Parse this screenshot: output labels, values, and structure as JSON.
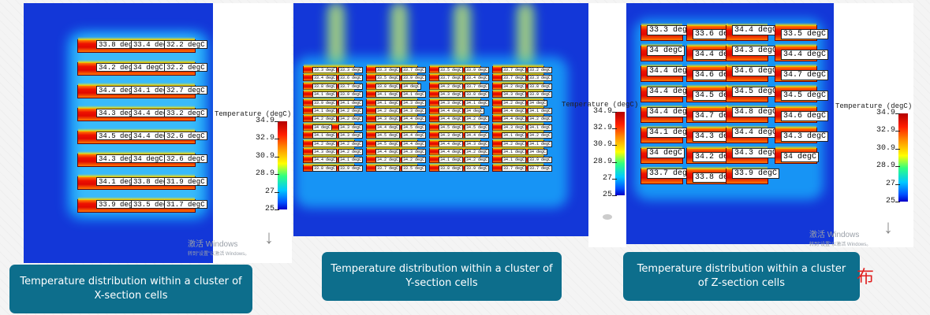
{
  "colorbar": {
    "title": "Temperature (degC)",
    "ticks": [
      "34.9",
      "32.9",
      "30.9",
      "28.9",
      "27",
      "25"
    ]
  },
  "watermark": {
    "main": "激活 Windows",
    "sub": "转到\"设置\"以激活 Windows。"
  },
  "captions": {
    "x": "Temperature distribution within a cluster of X-section cells",
    "y": "Temperature distribution within a cluster of Y-section cells",
    "z": "Temperature distribution within a cluster of Z-section cells"
  },
  "cn_char": "布",
  "x_section": {
    "rows": [
      [
        "33.8 degC",
        "33.4 degC",
        "32.2 degC"
      ],
      [
        "34.2 degC",
        "34 degC",
        "32.2 degC"
      ],
      [
        "34.4 degC",
        "34.1 degC",
        "32.7 degC"
      ],
      [
        "34.3 degC",
        "34.4 degC",
        "33.2 degC"
      ],
      [
        "34.5 degC",
        "34.4 degC",
        "32.6 degC"
      ],
      [
        "34.3 degC",
        "34 degC",
        "32.6 degC"
      ],
      [
        "34.1 degC",
        "33.8 degC",
        "31.9 degC"
      ],
      [
        "33.9 degC",
        "33.5 degC",
        "31.7 degC"
      ]
    ]
  },
  "y_section": {
    "columns": [
      [
        "33.3 degC",
        "33.4 degC",
        "33.8 degC",
        "34.1 degC",
        "33.9 degC",
        "34.1 degC",
        "34.2 degC",
        "34 degC",
        "34.1 degC",
        "34.2 degC",
        "34.3 degC",
        "34.4 degC",
        "33.8 degC"
      ],
      [
        "33.3 degC",
        "33.5 degC",
        "33.8 degC",
        "34.1 degC",
        "34.1 degC",
        "34.2 degC",
        "34.3 degC",
        "34.4 degC",
        "34.5 degC",
        "34.5 degC",
        "34.4 degC",
        "34.2 degC",
        "33.7 degC"
      ],
      [
        "33.5 degC",
        "33.7 degC",
        "34.2 degC",
        "34.3 degC",
        "34.3 degC",
        "34.4 degC",
        "34.4 degC",
        "34.5 degC",
        "34.3 degC",
        "34.4 degC",
        "34.4 degC",
        "34.1 degC",
        "33.8 degC"
      ],
      [
        "33.7 degC",
        "33.7 degC",
        "34.2 degC",
        "34.3 degC",
        "34.2 degC",
        "34.4 degC",
        "34.4 degC",
        "34.3 degC",
        "34.1 degC",
        "34.2 degC",
        "34.1 degC",
        "34.1 degC",
        "33.7 degC"
      ]
    ],
    "inner": [
      [
        "33.3 degC",
        "33.6 degC",
        "33.7 degC",
        "33.9 degC",
        "34.1 degC",
        "34.2 degC",
        "34.2 degC",
        "34.3 degC",
        "34.3 degC",
        "34.2 degC",
        "34.2 degC",
        "34.1 degC",
        "33.9 degC"
      ],
      [
        "33.7 degC",
        "33.9 degC",
        "34 degC",
        "34.1 degC",
        "34.3 degC",
        "34.3 degC",
        "34.4 degC",
        "34.5 degC",
        "34.4 degC",
        "34.4 degC",
        "34.3 degC",
        "34.2 degC",
        "33.5 degC"
      ],
      [
        "33.9 degC",
        "33.4 degC",
        "33.7 degC",
        "33.8 degC",
        "34.1 degC",
        "34 degC",
        "34.2 degC",
        "34.5 degC",
        "34.4 degC",
        "34.3 degC",
        "34.2 degC",
        "34.2 degC",
        "33.9 degC"
      ],
      [
        "33.2 degC",
        "33.3 degC",
        "33.8 degC",
        "33.9 degC",
        "34 degC",
        "34.1 degC",
        "34.2 degC",
        "34.1 degC",
        "34.2 degC",
        "34.1 degC",
        "34 degC",
        "33.9 degC",
        "33.7 degC"
      ]
    ]
  },
  "z_section": {
    "rows": [
      [
        "33.3 degC",
        "33.6 degC",
        "34.4 degC",
        "33.5 degC"
      ],
      [
        "34 degC",
        "34.4 degC",
        "34.3 degC",
        "34.4 degC"
      ],
      [
        "34.4 degC",
        "34.6 degC",
        "34.6 degC",
        "34.7 degC"
      ],
      [
        "34.4 degC",
        "34.5 degC",
        "34.5 degC",
        "34.5 degC"
      ],
      [
        "34.4 degC",
        "34.7 degC",
        "34.8 degC",
        "34.6 degC"
      ],
      [
        "34.1 degC",
        "34.3 degC",
        "34.4 degC",
        "34.3 degC"
      ],
      [
        "34 degC",
        "34.2 degC",
        "34.3 degC",
        "34 degC"
      ],
      [
        "33.7 degC",
        "33.8 degC",
        "33.9 degC"
      ]
    ]
  }
}
